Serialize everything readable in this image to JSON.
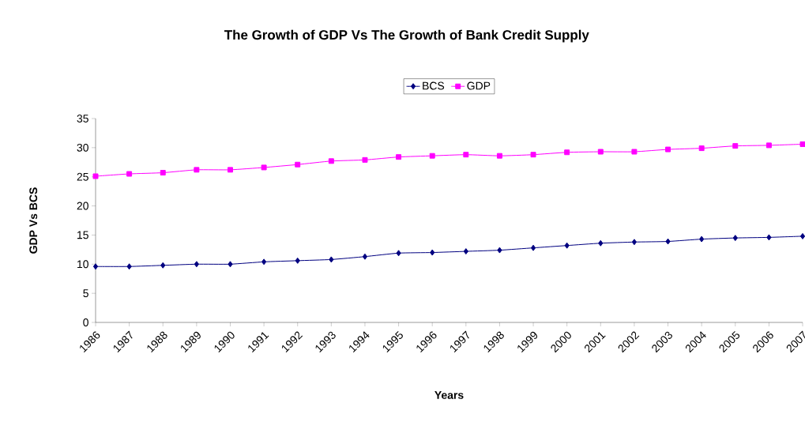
{
  "chart_data": {
    "type": "line",
    "title": "The Growth of GDP Vs The Growth of Bank Credit Supply",
    "xlabel": "Years",
    "ylabel": "GDP Vs BCS",
    "categories": [
      "1986",
      "1987",
      "1988",
      "1989",
      "1990",
      "1991",
      "1992",
      "1993",
      "1994",
      "1995",
      "1996",
      "1997",
      "1998",
      "1999",
      "2000",
      "2001",
      "2002",
      "2003",
      "2004",
      "2005",
      "2006",
      "2007"
    ],
    "series": [
      {
        "name": "BCS",
        "color": "#000080",
        "marker": "diamond",
        "values": [
          9.6,
          9.6,
          9.8,
          10.0,
          10.0,
          10.4,
          10.6,
          10.8,
          11.3,
          11.9,
          12.0,
          12.2,
          12.4,
          12.8,
          13.2,
          13.6,
          13.8,
          13.9,
          14.3,
          14.5,
          14.6,
          14.8
        ]
      },
      {
        "name": "GDP",
        "color": "#ff00ff",
        "marker": "square",
        "values": [
          25.1,
          25.5,
          25.7,
          26.2,
          26.2,
          26.6,
          27.1,
          27.7,
          27.9,
          28.4,
          28.6,
          28.8,
          28.6,
          28.8,
          29.2,
          29.3,
          29.3,
          29.7,
          29.9,
          30.3,
          30.4,
          30.6
        ]
      }
    ],
    "ylim": [
      0,
      35
    ],
    "yticks": [
      0,
      5,
      10,
      15,
      20,
      25,
      30,
      35
    ],
    "legend": "top",
    "grid": false,
    "line_style": "solid"
  }
}
